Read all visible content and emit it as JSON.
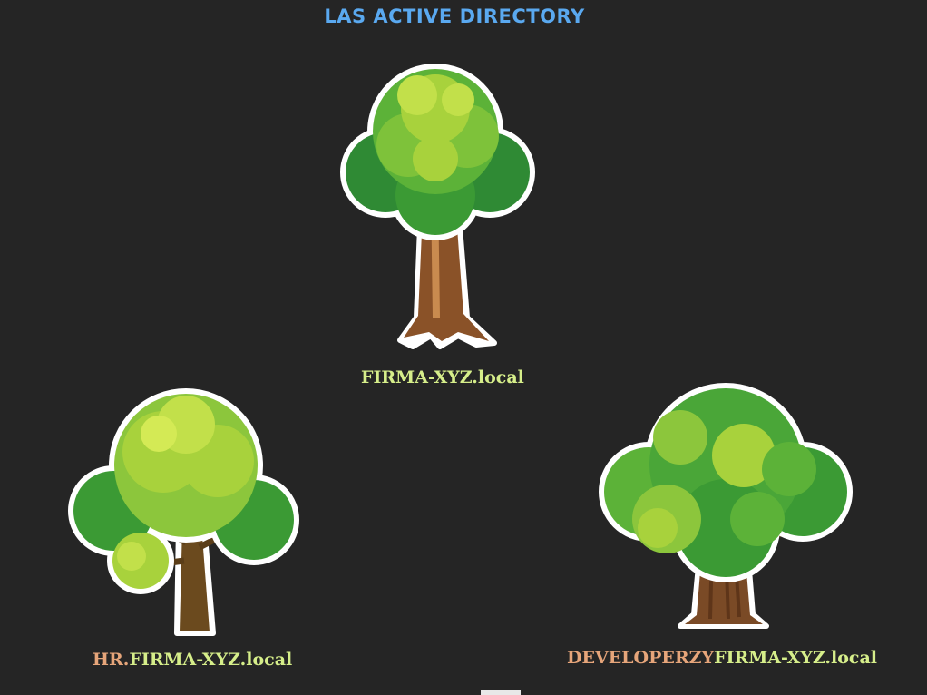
{
  "header": {
    "title": "LAS ACTIVE DIRECTORY"
  },
  "trees": [
    {
      "id": "root",
      "prefix": "",
      "domain": "FIRMA-XYZ.local"
    },
    {
      "id": "hr",
      "prefix": "HR.",
      "domain": "FIRMA-XYZ.local"
    },
    {
      "id": "dev",
      "prefix": "DEVELOPERZY",
      "domain": "FIRMA-XYZ.local"
    }
  ],
  "colors": {
    "background": "#252525",
    "title": "#5aa9f0",
    "domain_text": "#d6ee8a",
    "subdomain_text": "#e6a57a",
    "foliage_dark": "#2f8a34",
    "foliage_mid": "#5cb238",
    "foliage_light": "#a8d23c",
    "trunk": "#8a5228"
  },
  "icons": [
    "root-domain-tree-icon",
    "hr-domain-tree-icon",
    "dev-domain-tree-icon"
  ]
}
